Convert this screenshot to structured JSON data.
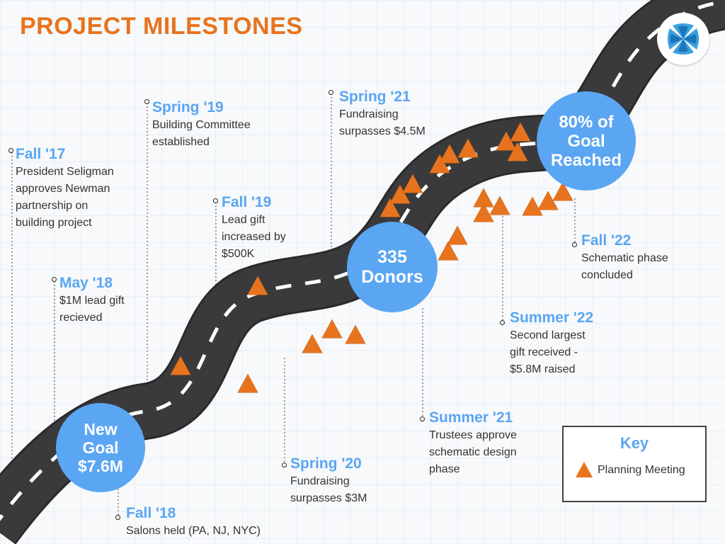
{
  "title": "PROJECT MILESTONES",
  "colors": {
    "accent": "#e8731e",
    "blue": "#5aa6f2",
    "road": "#3a3a3c",
    "text": "#333333"
  },
  "milestones": [
    {
      "id": "fall-17",
      "label": "Fall '17",
      "desc": "President Seligman\napproves Newman\npartnership on\nbuilding project"
    },
    {
      "id": "may-18",
      "label": "May '18",
      "desc": "$1M lead gift\nrecieved"
    },
    {
      "id": "fall-18",
      "label": "Fall '18",
      "desc": "Salons held (PA, NJ, NYC)"
    },
    {
      "id": "spring-19",
      "label": "Spring '19",
      "desc": "Building Committee\nestablished"
    },
    {
      "id": "fall-19",
      "label": "Fall '19",
      "desc": "Lead gift\nincreased by\n$500K"
    },
    {
      "id": "spring-20",
      "label": "Spring '20",
      "desc": "Fundraising\nsurpasses $3M"
    },
    {
      "id": "spring-21",
      "label": "Spring '21",
      "desc": "Fundraising\nsurpasses $4.5M"
    },
    {
      "id": "summer-21",
      "label": "Summer '21",
      "desc": "Trustees approve\nschematic design\nphase"
    },
    {
      "id": "summer-22",
      "label": "Summer '22",
      "desc": "Second largest\ngift received -\n$5.8M raised"
    },
    {
      "id": "fall-22",
      "label": "Fall '22",
      "desc": "Schematic phase\nconcluded"
    }
  ],
  "circles": {
    "goal": "New\nGoal\n$7.6M",
    "donors": "335\nDonors",
    "reached": "80% of\nGoal\nReached"
  },
  "key": {
    "title": "Key",
    "item": "Planning Meeting",
    "icon": "triangle-icon"
  },
  "logo": {
    "icon": "cross-icon"
  }
}
